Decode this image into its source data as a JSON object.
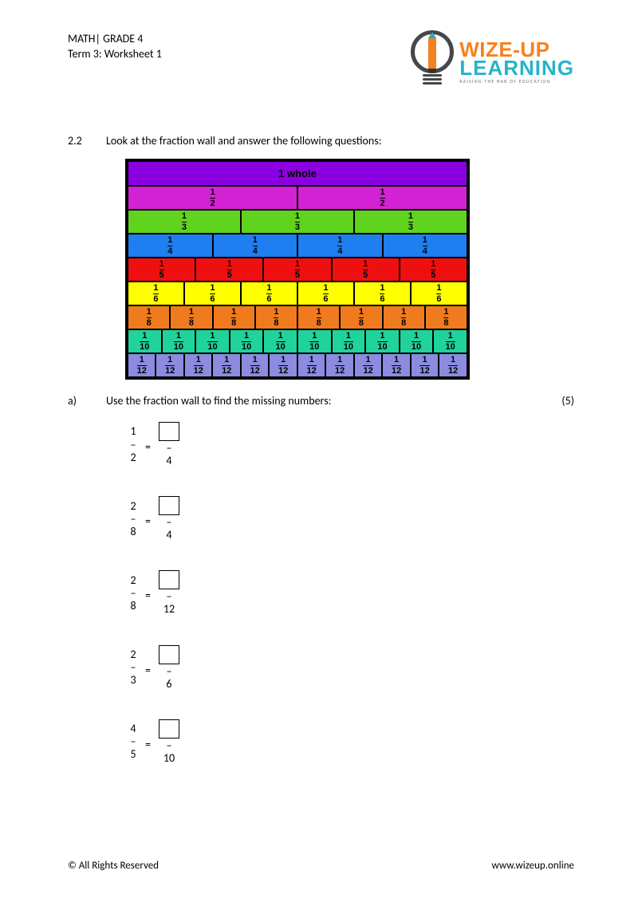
{
  "header": {
    "line1": "MATH| GRADE 4",
    "line2": "Term 3: Worksheet 1"
  },
  "logo": {
    "top": "WIZE-UP",
    "bottom": "LEARNING",
    "tagline": "RAISING THE BAR OF EDUCATION"
  },
  "question": {
    "number": "2.2",
    "text": "Look at the fraction wall and answer the following questions:"
  },
  "fraction_wall": {
    "whole_label": "1 whole",
    "rows": [
      {
        "parts": 1,
        "color": "#8a00e0",
        "label": "1 whole"
      },
      {
        "parts": 2,
        "color": "#d322d3",
        "num": "1",
        "den": "2"
      },
      {
        "parts": 3,
        "color": "#5fd31d",
        "num": "1",
        "den": "3"
      },
      {
        "parts": 4,
        "color": "#1f7ef0",
        "num": "1",
        "den": "4"
      },
      {
        "parts": 5,
        "color": "#ee1010",
        "num": "1",
        "den": "5"
      },
      {
        "parts": 6,
        "color": "#ffff00",
        "num": "1",
        "den": "6"
      },
      {
        "parts": 8,
        "color": "#f07b1f",
        "num": "1",
        "den": "8"
      },
      {
        "parts": 10,
        "color": "#1fd39a",
        "num": "1",
        "den": "10"
      },
      {
        "parts": 12,
        "color": "#8b8be0",
        "num": "1",
        "den": "12"
      }
    ]
  },
  "sub_question": {
    "letter": "a)",
    "text": "Use the fraction wall to find the missing numbers:",
    "marks": "(5)"
  },
  "problems": [
    {
      "n1": "1",
      "d1": "2",
      "d2": "4"
    },
    {
      "n1": "2",
      "d1": "8",
      "d2": "4"
    },
    {
      "n1": "2",
      "d1": "8",
      "d2": "12"
    },
    {
      "n1": "2",
      "d1": "3",
      "d2": "6"
    },
    {
      "n1": "4",
      "d1": "5",
      "d2": "10"
    }
  ],
  "footer": {
    "left": "© All Rights Reserved",
    "right": "www.wizeup.online"
  }
}
